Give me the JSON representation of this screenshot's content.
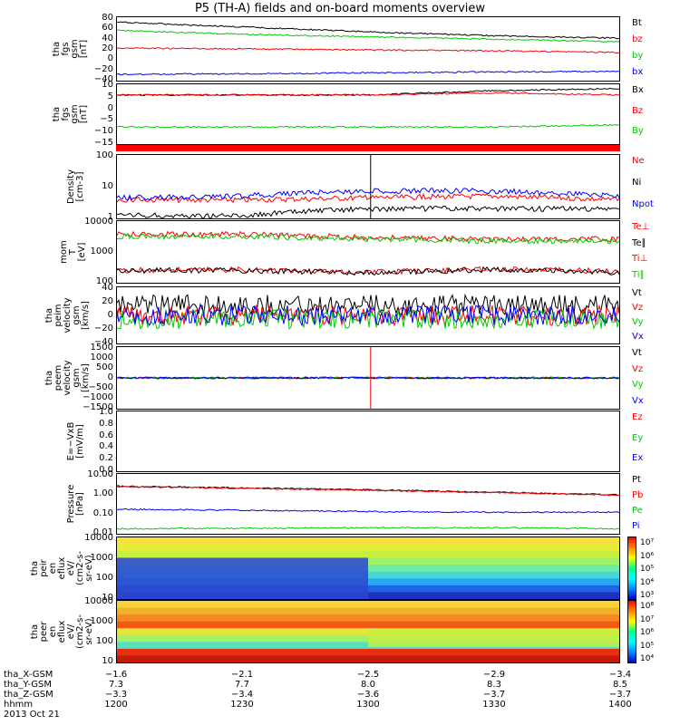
{
  "title": "P5 (TH-A) fields and on-board moments overview",
  "panels": [
    {
      "id": "fgs",
      "ylabel": "tha\nfgs\ngsm\n[nT]",
      "ticks": [
        "80",
        "60",
        "40",
        "20",
        "0",
        "−20",
        "−40"
      ],
      "legend": [
        {
          "t": "Bt",
          "c": "#000000"
        },
        {
          "t": "bz",
          "c": "#ff0000"
        },
        {
          "t": "by",
          "c": "#00cc00"
        },
        {
          "t": "bx",
          "c": "#0000ff"
        }
      ]
    },
    {
      "id": "fgs2",
      "ylabel": "tha\nfgs\ngsm\n[nT]",
      "ticks": [
        "10",
        "5",
        "0",
        "−5",
        "−10",
        "−15"
      ],
      "legend": [
        {
          "t": "Bx",
          "c": "#000000"
        },
        {
          "t": "Bz",
          "c": "#ff0000"
        },
        {
          "t": "By",
          "c": "#00cc00"
        }
      ]
    },
    {
      "id": "dens",
      "ylabel": "Density\n[cm-3]",
      "ticks": [
        "100",
        "10",
        "1"
      ],
      "legend": [
        {
          "t": "Ne",
          "c": "#ff0000"
        },
        {
          "t": "Ni",
          "c": "#000000"
        },
        {
          "t": "Npot",
          "c": "#0000ff"
        }
      ]
    },
    {
      "id": "temp",
      "ylabel": "mom\nT\n[eV]",
      "ticks": [
        "10000",
        "1000",
        "100"
      ],
      "legend": [
        {
          "t": "Te⊥",
          "c": "#ff0000"
        },
        {
          "t": "Te∥",
          "c": "#000000"
        },
        {
          "t": "Ti⊥",
          "c": "#ff0000"
        },
        {
          "t": "Ti∥",
          "c": "#00cc00"
        }
      ]
    },
    {
      "id": "peim",
      "ylabel": "tha\npeim\nvelocity\ngsm\n[km/s]",
      "ticks": [
        "40",
        "20",
        "0",
        "−20",
        "−40"
      ],
      "legend": [
        {
          "t": "Vt",
          "c": "#000000"
        },
        {
          "t": "Vz",
          "c": "#ff0000"
        },
        {
          "t": "Vy",
          "c": "#00cc00"
        },
        {
          "t": "Vx",
          "c": "#0000ff"
        }
      ]
    },
    {
      "id": "peem",
      "ylabel": "tha\npeem\nvelocity\ngsm\n[km/s]",
      "ticks": [
        "1500",
        "1000",
        "500",
        "0",
        "−500",
        "−1000",
        "−1500"
      ],
      "legend": [
        {
          "t": "Vt",
          "c": "#000000"
        },
        {
          "t": "Vz",
          "c": "#ff0000"
        },
        {
          "t": "Vy",
          "c": "#00cc00"
        },
        {
          "t": "Vx",
          "c": "#0000ff"
        }
      ]
    },
    {
      "id": "efield",
      "ylabel": "E=−VxB\n[mV/m]",
      "ticks": [
        "1.0",
        "0.8",
        "0.6",
        "0.4",
        "0.2",
        "0.0"
      ],
      "legend": [
        {
          "t": "Ez",
          "c": "#ff0000"
        },
        {
          "t": "Ey",
          "c": "#00cc00"
        },
        {
          "t": "Ex",
          "c": "#0000ff"
        }
      ]
    },
    {
      "id": "press",
      "ylabel": "Pressure\n[nPa]",
      "ticks": [
        "10.00",
        "1.00",
        "0.10",
        "0.01"
      ],
      "legend": [
        {
          "t": "Pt",
          "c": "#000000"
        },
        {
          "t": "Pb",
          "c": "#ff0000"
        },
        {
          "t": "Pe",
          "c": "#00cc00"
        },
        {
          "t": "Pi",
          "c": "#0000ff"
        }
      ]
    },
    {
      "id": "peir",
      "ylabel": "tha\npeir\nen\neflux\neV/\n(cm2-s-\nsr-eV)",
      "ticks": [
        "10000",
        "1000",
        "100",
        "10"
      ],
      "legend": []
    },
    {
      "id": "peer",
      "ylabel": "tha\npeer\nen\neflux\neV/\n(cm2-s-\nsr-eV)",
      "ticks": [
        "10000",
        "1000",
        "100",
        "10"
      ],
      "legend": []
    }
  ],
  "colorbars": [
    {
      "labels": [
        "10⁷",
        "10⁶",
        "10⁵",
        "10⁴",
        "10³"
      ]
    },
    {
      "labels": [
        "10⁸",
        "10⁷",
        "10⁶",
        "10⁵",
        "10⁴"
      ]
    }
  ],
  "xaxis": {
    "rows": [
      "tha_X-GSM",
      "tha_Y-GSM",
      "tha_Z-GSM",
      "hhmm"
    ],
    "date": "2013 Oct 21",
    "ticks": [
      {
        "x": "−1.6",
        "y": "7.3",
        "z": "−3.3",
        "t": "1200"
      },
      {
        "x": "−2.1",
        "y": "7.7",
        "z": "−3.4",
        "t": "1230"
      },
      {
        "x": "−2.5",
        "y": "8.0",
        "z": "−3.6",
        "t": "1300"
      },
      {
        "x": "−2.9",
        "y": "8.3",
        "z": "−3.7",
        "t": "1330"
      },
      {
        "x": "−3.4",
        "y": "8.5",
        "z": "−3.7",
        "t": "1400"
      }
    ]
  },
  "chart_data": [
    {
      "type": "line",
      "title": "P5 (TH-A) fields and on-board moments overview",
      "ylabel": "tha fgs gsm [nT]",
      "ylim": [
        -40,
        90
      ],
      "x": [
        "1200",
        "1230",
        "1300",
        "1330",
        "1400"
      ],
      "series": [
        {
          "name": "Bt",
          "values": [
            80,
            70,
            60,
            52,
            47
          ]
        },
        {
          "name": "bz",
          "values": [
            27,
            25,
            23,
            21,
            18
          ]
        },
        {
          "name": "by",
          "values": [
            63,
            55,
            50,
            45,
            40
          ]
        },
        {
          "name": "bx",
          "values": [
            -27,
            -26,
            -24,
            -22,
            -21
          ]
        }
      ]
    },
    {
      "type": "line",
      "ylabel": "tha fgs gsm [nT]",
      "ylim": [
        -18,
        10
      ],
      "x": [
        "1200",
        "1230",
        "1300",
        "1330",
        "1400"
      ],
      "series": [
        {
          "name": "Bx",
          "values": [
            5,
            5,
            5,
            7,
            8
          ]
        },
        {
          "name": "Bz",
          "values": [
            5,
            5,
            5,
            6,
            5
          ]
        },
        {
          "name": "By",
          "values": [
            -10,
            -10,
            -10,
            -10,
            -9
          ]
        }
      ]
    },
    {
      "type": "line",
      "ylabel": "Density [cm-3]",
      "ylim": [
        0.3,
        200
      ],
      "x": [
        "1200",
        "1230",
        "1300",
        "1330",
        "1400"
      ],
      "series": [
        {
          "name": "Ne",
          "values": [
            2,
            2,
            2.5,
            3,
            2
          ]
        },
        {
          "name": "Ni",
          "values": [
            0.4,
            0.4,
            0.8,
            0.8,
            0.8
          ]
        },
        {
          "name": "Npot",
          "values": [
            2.5,
            3,
            5,
            5,
            3
          ]
        }
      ]
    },
    {
      "type": "line",
      "ylabel": "mom T [eV]",
      "ylim": [
        30,
        20000
      ],
      "x": [
        "1200",
        "1230",
        "1300",
        "1330",
        "1400"
      ],
      "series": [
        {
          "name": "Te⊥",
          "values": [
            110,
            120,
            90,
            130,
            100
          ]
        },
        {
          "name": "Te∥",
          "values": [
            110,
            110,
            85,
            120,
            90
          ]
        },
        {
          "name": "Ti⊥",
          "values": [
            5000,
            5000,
            3500,
            3000,
            3000
          ]
        },
        {
          "name": "Ti∥",
          "values": [
            4000,
            4000,
            3000,
            2500,
            2500
          ]
        }
      ]
    },
    {
      "type": "line",
      "ylabel": "tha peim velocity gsm [km/s]",
      "ylim": [
        -40,
        40
      ],
      "x": [
        "1200",
        "1230",
        "1300",
        "1330",
        "1400"
      ],
      "series": [
        {
          "name": "Vt",
          "values": [
            15,
            15,
            15,
            15,
            15
          ]
        },
        {
          "name": "Vz",
          "values": [
            0,
            0,
            0,
            0,
            0
          ]
        },
        {
          "name": "Vy",
          "values": [
            -5,
            -5,
            -5,
            -5,
            -5
          ]
        },
        {
          "name": "Vx",
          "values": [
            0,
            0,
            0,
            0,
            0
          ]
        }
      ]
    },
    {
      "type": "line",
      "ylabel": "tha peem velocity gsm [km/s]",
      "ylim": [
        -1500,
        1500
      ],
      "x": [
        "1200",
        "1230",
        "1300",
        "1330",
        "1400"
      ],
      "series": [
        {
          "name": "Vt",
          "values": [
            0,
            0,
            1500,
            0,
            0
          ]
        },
        {
          "name": "Vz",
          "values": [
            0,
            0,
            -1500,
            0,
            0
          ]
        },
        {
          "name": "Vy",
          "values": [
            0,
            0,
            0,
            0,
            0
          ]
        },
        {
          "name": "Vx",
          "values": [
            0,
            0,
            0,
            0,
            0
          ]
        }
      ]
    },
    {
      "type": "line",
      "ylabel": "E=−VxB [mV/m]",
      "ylim": [
        0,
        1
      ],
      "series": []
    },
    {
      "type": "line",
      "ylabel": "Pressure [nPa]",
      "ylim": [
        0.01,
        10
      ],
      "x": [
        "1200",
        "1230",
        "1300",
        "1330",
        "1400"
      ],
      "series": [
        {
          "name": "Pt",
          "values": [
            2.4,
            2,
            1.6,
            1.2,
            0.9
          ]
        },
        {
          "name": "Pb",
          "values": [
            2.3,
            1.9,
            1.5,
            1.15,
            0.85
          ]
        },
        {
          "name": "Pe",
          "values": [
            0.018,
            0.019,
            0.02,
            0.02,
            0.018
          ]
        },
        {
          "name": "Pi",
          "values": [
            0.17,
            0.15,
            0.13,
            0.12,
            0.12
          ]
        }
      ]
    },
    {
      "type": "heatmap",
      "ylabel": "tha peir en eflux eV/(cm2-s-sr-eV)",
      "ylim": [
        5,
        30000
      ]
    },
    {
      "type": "heatmap",
      "ylabel": "tha peer en eflux eV/(cm2-s-sr-eV)",
      "ylim": [
        5,
        30000
      ]
    }
  ]
}
